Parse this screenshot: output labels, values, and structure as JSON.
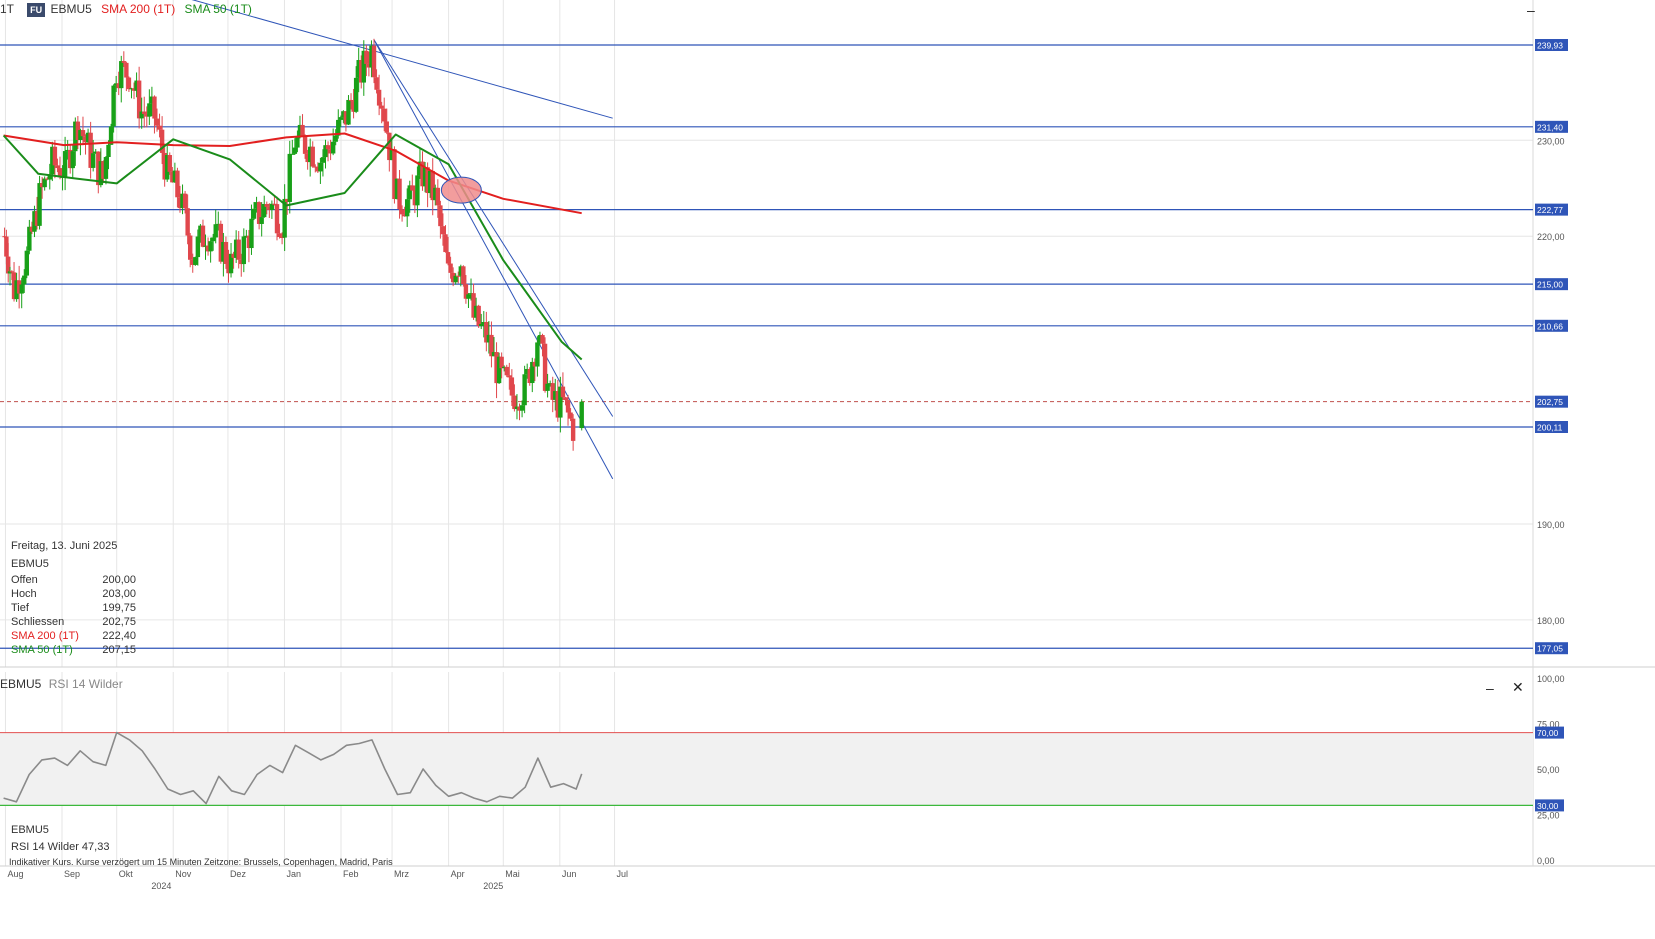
{
  "header": {
    "interval": "1T",
    "badge": "FU",
    "symbol": "EBMU5",
    "sma200_label": "SMA 200 (1T)",
    "sma50_label": "SMA 50 (1T)",
    "minimize_icon": "minimize-icon"
  },
  "info_box": {
    "date": "Freitag, 13. Juni 2025",
    "symbol": "EBMU5",
    "rows": [
      {
        "label": "Offen",
        "value": "200,00"
      },
      {
        "label": "Hoch",
        "value": "203,00"
      },
      {
        "label": "Tief",
        "value": "199,75"
      },
      {
        "label": "Schliessen",
        "value": "202,75"
      },
      {
        "label": "SMA 200 (1T)",
        "value": "222,40",
        "color": "#e21f1f"
      },
      {
        "label": "SMA 50 (1T)",
        "value": "207,15",
        "color": "#1a8c1a"
      }
    ]
  },
  "rsi_panel": {
    "title_symbol": "EBMU5",
    "title_indicator": "RSI 14 Wilder",
    "legend_symbol": "EBMU5",
    "legend_value": "RSI 14 Wilder 47,33",
    "minimize_icon": "minimize-icon",
    "close_icon": "close-icon"
  },
  "footer": {
    "note": "Indikativer Kurs. Kurse verzögert um 15 Minuten   Zeitzone: Brussels, Copenhagen, Madrid, Paris"
  },
  "colors": {
    "up": "#18a018",
    "down": "#e0474c",
    "sma200": "#e21f1f",
    "sma50": "#1a8c1a",
    "hline": "#2f55b8",
    "trendline": "#2f55b8",
    "rsi_line": "#8a8a8a",
    "rsi_upper": "#e25050",
    "rsi_lower": "#3cb83c",
    "grid": "#e6e6e6",
    "marker": "#f08c8c"
  },
  "chart_data": [
    {
      "type": "candlestick",
      "title": "EBMU5",
      "ylim": [
        174,
        244
      ],
      "price_ticks": [
        "230,00",
        "220,00",
        "190,00",
        "180,00"
      ],
      "month_labels": [
        "Aug",
        "Sep",
        "Okt",
        "Nov",
        "Dez",
        "Jan",
        "Feb",
        "Mrz",
        "Apr",
        "Mai",
        "Jun",
        "Jul"
      ],
      "year_labels": [
        "2024",
        "2025"
      ],
      "horizontal_levels": [
        {
          "label": "239,93",
          "value": 239.93
        },
        {
          "label": "231,40",
          "value": 231.4
        },
        {
          "label": "222,77",
          "value": 222.77
        },
        {
          "label": "215,00",
          "value": 215.0
        },
        {
          "label": "210,66",
          "value": 210.66
        },
        {
          "label": "200,11",
          "value": 200.11
        },
        {
          "label": "177,05",
          "value": 177.05
        }
      ],
      "last_price": {
        "label": "202,75",
        "value": 202.75
      },
      "trendlines": [
        {
          "from": [
            "2024-09-10",
            248.0
          ],
          "to": [
            "2025-06-30",
            232.3
          ]
        },
        {
          "from": [
            "2025-02-19",
            240.5
          ],
          "to": [
            "2025-06-30",
            201.2
          ]
        },
        {
          "from": [
            "2025-02-19",
            240.5
          ],
          "to": [
            "2025-06-30",
            194.7
          ]
        }
      ],
      "crossover_marker": {
        "date": "2025-04-08",
        "value": 224.8
      },
      "last_candle": {
        "date": "2025-06-13",
        "open": 200.0,
        "high": 203.0,
        "low": 199.75,
        "close": 202.75
      },
      "close_series": [
        {
          "date": "2024-07-31",
          "close": 220.0
        },
        {
          "date": "2024-08-05",
          "close": 214.5
        },
        {
          "date": "2024-08-12",
          "close": 217.8
        },
        {
          "date": "2024-08-19",
          "close": 224.0
        },
        {
          "date": "2024-08-26",
          "close": 227.5
        },
        {
          "date": "2024-09-02",
          "close": 227.0
        },
        {
          "date": "2024-09-09",
          "close": 232.0
        },
        {
          "date": "2024-09-16",
          "close": 228.5
        },
        {
          "date": "2024-09-23",
          "close": 226.0
        },
        {
          "date": "2024-09-30",
          "close": 237.5
        },
        {
          "date": "2024-10-07",
          "close": 237.0
        },
        {
          "date": "2024-10-14",
          "close": 233.0
        },
        {
          "date": "2024-10-21",
          "close": 232.5
        },
        {
          "date": "2024-10-28",
          "close": 226.5
        },
        {
          "date": "2024-11-04",
          "close": 224.0
        },
        {
          "date": "2024-11-11",
          "close": 218.0
        },
        {
          "date": "2024-11-18",
          "close": 220.5
        },
        {
          "date": "2024-11-25",
          "close": 219.5
        },
        {
          "date": "2024-12-02",
          "close": 217.0
        },
        {
          "date": "2024-12-09",
          "close": 219.0
        },
        {
          "date": "2024-12-16",
          "close": 222.0
        },
        {
          "date": "2024-12-23",
          "close": 223.5
        },
        {
          "date": "2024-12-30",
          "close": 221.5
        },
        {
          "date": "2025-01-06",
          "close": 230.0
        },
        {
          "date": "2025-01-13",
          "close": 229.5
        },
        {
          "date": "2025-01-20",
          "close": 228.0
        },
        {
          "date": "2025-01-27",
          "close": 230.0
        },
        {
          "date": "2025-02-03",
          "close": 232.5
        },
        {
          "date": "2025-02-10",
          "close": 236.5
        },
        {
          "date": "2025-02-17",
          "close": 239.5
        },
        {
          "date": "2025-02-24",
          "close": 233.0
        },
        {
          "date": "2025-03-03",
          "close": 224.0
        },
        {
          "date": "2025-03-10",
          "close": 223.5
        },
        {
          "date": "2025-03-17",
          "close": 226.5
        },
        {
          "date": "2025-03-24",
          "close": 224.0
        },
        {
          "date": "2025-03-31",
          "close": 216.0
        },
        {
          "date": "2025-04-07",
          "close": 217.5
        },
        {
          "date": "2025-04-14",
          "close": 211.5
        },
        {
          "date": "2025-04-21",
          "close": 209.5
        },
        {
          "date": "2025-04-28",
          "close": 205.5
        },
        {
          "date": "2025-05-05",
          "close": 203.5
        },
        {
          "date": "2025-05-12",
          "close": 204.0
        },
        {
          "date": "2025-05-19",
          "close": 209.5
        },
        {
          "date": "2025-05-26",
          "close": 203.0
        },
        {
          "date": "2025-06-02",
          "close": 202.5
        },
        {
          "date": "2025-06-09",
          "close": 199.5
        },
        {
          "date": "2025-06-13",
          "close": 202.75
        }
      ],
      "sma200": [
        {
          "date": "2024-07-31",
          "close": 230.5
        },
        {
          "date": "2024-09-02",
          "close": 229.5
        },
        {
          "date": "2024-10-01",
          "close": 229.8
        },
        {
          "date": "2024-11-01",
          "close": 229.5
        },
        {
          "date": "2024-12-02",
          "close": 229.4
        },
        {
          "date": "2025-01-02",
          "close": 230.3
        },
        {
          "date": "2025-02-03",
          "close": 230.7
        },
        {
          "date": "2025-03-03",
          "close": 228.9
        },
        {
          "date": "2025-04-01",
          "close": 225.8
        },
        {
          "date": "2025-05-01",
          "close": 223.9
        },
        {
          "date": "2025-06-13",
          "close": 222.4
        }
      ],
      "sma50": [
        {
          "date": "2024-07-31",
          "close": 230.5
        },
        {
          "date": "2024-08-19",
          "close": 226.5
        },
        {
          "date": "2024-09-09",
          "close": 226.0
        },
        {
          "date": "2024-10-01",
          "close": 225.5
        },
        {
          "date": "2024-11-01",
          "close": 230.1
        },
        {
          "date": "2024-12-02",
          "close": 228.0
        },
        {
          "date": "2025-01-02",
          "close": 223.2
        },
        {
          "date": "2025-02-03",
          "close": 224.5
        },
        {
          "date": "2025-03-03",
          "close": 230.6
        },
        {
          "date": "2025-04-01",
          "close": 227.5
        },
        {
          "date": "2025-05-01",
          "close": 217.5
        },
        {
          "date": "2025-06-02",
          "close": 209.0
        },
        {
          "date": "2025-06-13",
          "close": 207.15
        }
      ]
    },
    {
      "type": "line",
      "title": "RSI 14 Wilder",
      "ylim": [
        0,
        100
      ],
      "y_ticks": [
        "100,00",
        "75,00",
        "50,00",
        "25,00",
        "0,00"
      ],
      "levels": [
        {
          "label": "70,00",
          "value": 70
        },
        {
          "label": "30,00",
          "value": 30
        }
      ],
      "last_value": 47.33,
      "series": [
        {
          "date": "2024-07-31",
          "value": 34
        },
        {
          "date": "2024-08-07",
          "value": 32
        },
        {
          "date": "2024-08-14",
          "value": 47
        },
        {
          "date": "2024-08-21",
          "value": 55
        },
        {
          "date": "2024-08-28",
          "value": 56
        },
        {
          "date": "2024-09-04",
          "value": 52
        },
        {
          "date": "2024-09-11",
          "value": 60
        },
        {
          "date": "2024-09-18",
          "value": 54
        },
        {
          "date": "2024-09-25",
          "value": 52
        },
        {
          "date": "2024-10-01",
          "value": 70
        },
        {
          "date": "2024-10-08",
          "value": 66
        },
        {
          "date": "2024-10-15",
          "value": 60
        },
        {
          "date": "2024-10-22",
          "value": 50
        },
        {
          "date": "2024-10-29",
          "value": 39
        },
        {
          "date": "2024-11-05",
          "value": 36
        },
        {
          "date": "2024-11-12",
          "value": 38
        },
        {
          "date": "2024-11-19",
          "value": 31
        },
        {
          "date": "2024-11-26",
          "value": 46
        },
        {
          "date": "2024-12-03",
          "value": 38
        },
        {
          "date": "2024-12-10",
          "value": 36
        },
        {
          "date": "2024-12-17",
          "value": 47
        },
        {
          "date": "2024-12-24",
          "value": 52
        },
        {
          "date": "2024-12-31",
          "value": 48
        },
        {
          "date": "2025-01-07",
          "value": 63
        },
        {
          "date": "2025-01-14",
          "value": 59
        },
        {
          "date": "2025-01-21",
          "value": 55
        },
        {
          "date": "2025-01-28",
          "value": 58
        },
        {
          "date": "2025-02-04",
          "value": 63
        },
        {
          "date": "2025-02-11",
          "value": 64
        },
        {
          "date": "2025-02-18",
          "value": 66
        },
        {
          "date": "2025-02-25",
          "value": 50
        },
        {
          "date": "2025-03-04",
          "value": 36
        },
        {
          "date": "2025-03-11",
          "value": 37
        },
        {
          "date": "2025-03-18",
          "value": 50
        },
        {
          "date": "2025-03-25",
          "value": 41
        },
        {
          "date": "2025-04-01",
          "value": 35
        },
        {
          "date": "2025-04-08",
          "value": 37
        },
        {
          "date": "2025-04-15",
          "value": 34
        },
        {
          "date": "2025-04-22",
          "value": 32
        },
        {
          "date": "2025-04-29",
          "value": 35
        },
        {
          "date": "2025-05-06",
          "value": 34
        },
        {
          "date": "2025-05-13",
          "value": 40
        },
        {
          "date": "2025-05-20",
          "value": 56
        },
        {
          "date": "2025-05-27",
          "value": 40
        },
        {
          "date": "2025-06-03",
          "value": 42
        },
        {
          "date": "2025-06-10",
          "value": 39
        },
        {
          "date": "2025-06-13",
          "value": 47.33
        }
      ]
    }
  ]
}
